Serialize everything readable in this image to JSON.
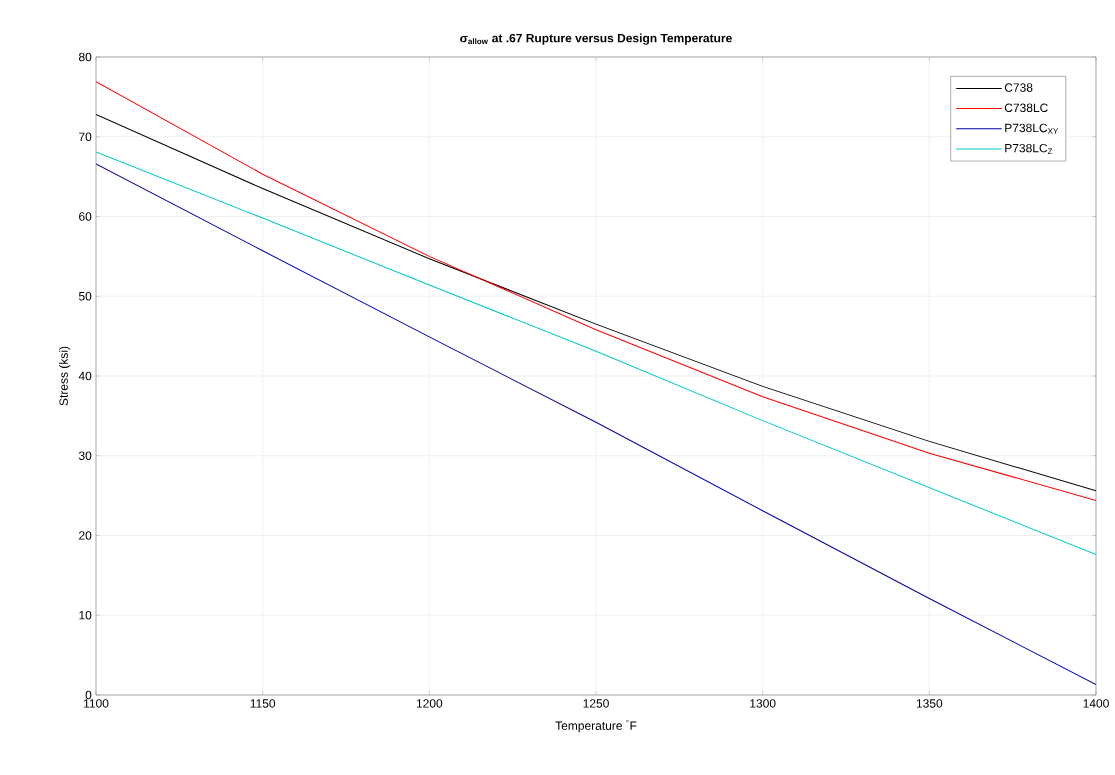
{
  "chart_data": {
    "type": "line",
    "title": "**σ$_{allow}$ at .67 Rupture  versus Design Temperature**",
    "xlabel": "Temperature $^{°}$F",
    "ylabel": "Stress (ksi)",
    "x": [
      1100,
      1150,
      1200,
      1250,
      1300,
      1350,
      1400
    ],
    "series": [
      {
        "name": "C738",
        "color": "#000000",
        "values": [
          72.8,
          63.5,
          54.7,
          46.5,
          38.7,
          31.8,
          25.6
        ]
      },
      {
        "name": "C738LC",
        "color": "#ff0000",
        "values": [
          76.9,
          65.3,
          55.0,
          45.8,
          37.4,
          30.3,
          24.4
        ]
      },
      {
        "name": "P738LC$_{XY}$",
        "color": "#0000a8",
        "values": [
          66.6,
          55.7,
          44.9,
          34.2,
          23.1,
          12.1,
          1.3
        ]
      },
      {
        "name": "P738LC$_{Z}$",
        "color": "#00c8c8",
        "values": [
          68.1,
          59.8,
          51.4,
          43.1,
          34.4,
          26.0,
          17.6
        ]
      }
    ],
    "xlim": [
      1100,
      1400
    ],
    "ylim": [
      0,
      80
    ],
    "xticks": [
      1100,
      1150,
      1200,
      1250,
      1300,
      1350,
      1400
    ],
    "yticks": [
      0,
      10,
      20,
      30,
      40,
      50,
      60,
      70,
      80
    ],
    "grid": true,
    "legend": "top right",
    "marker": "none",
    "line_style": "solid"
  }
}
